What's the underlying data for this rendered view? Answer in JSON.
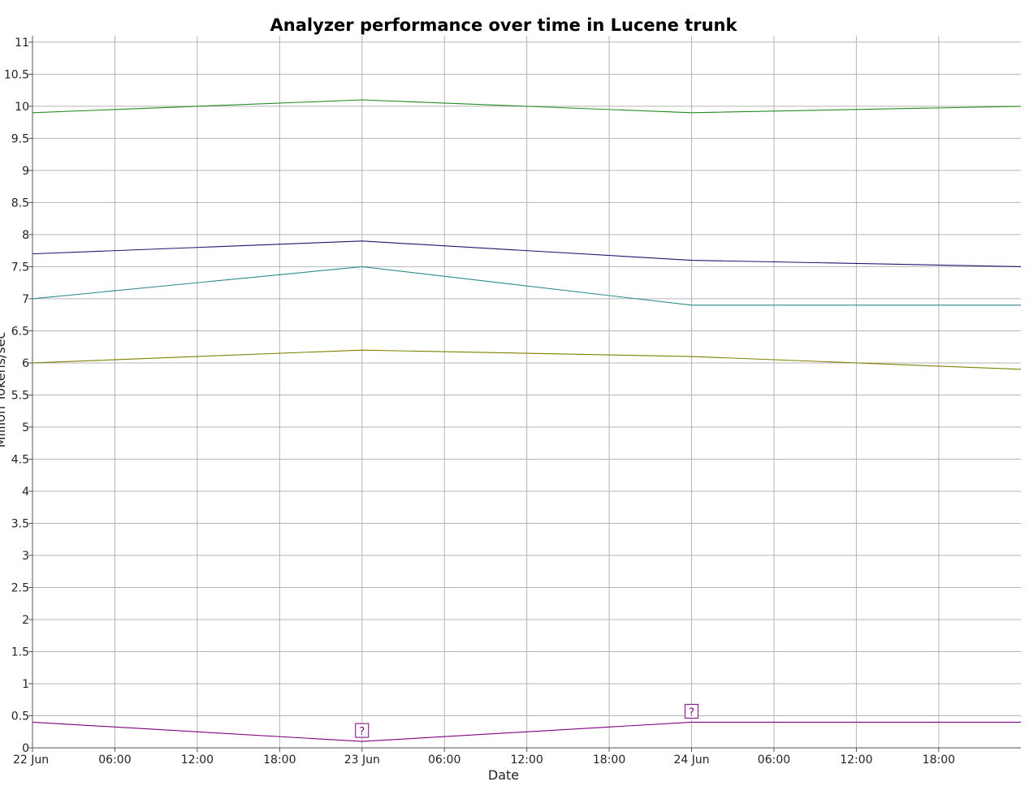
{
  "chart_data": {
    "type": "line",
    "title": "Analyzer performance over time in Lucene trunk",
    "xlabel": "Date",
    "ylabel": "Million Tokens/sec",
    "x_type": "datetime",
    "xlim": [
      "2011-06-22 00:00",
      "2011-06-24 23:59"
    ],
    "ylim": [
      0,
      11.1
    ],
    "x_ticks": [
      "2011-06-22 00:00",
      "2011-06-22 06:00",
      "2011-06-22 12:00",
      "2011-06-22 18:00",
      "2011-06-23 00:00",
      "2011-06-23 06:00",
      "2011-06-23 12:00",
      "2011-06-23 18:00",
      "2011-06-24 00:00",
      "2011-06-24 06:00",
      "2011-06-24 12:00",
      "2011-06-24 18:00"
    ],
    "x_tick_labels": [
      "22 Jun",
      "06:00",
      "12:00",
      "18:00",
      "23 Jun",
      "06:00",
      "12:00",
      "18:00",
      "24 Jun",
      "06:00",
      "12:00",
      "18:00"
    ],
    "y_ticks": [
      0,
      0.5,
      1,
      1.5,
      2,
      2.5,
      3,
      3.5,
      4,
      4.5,
      5,
      5.5,
      6,
      6.5,
      7,
      7.5,
      8,
      8.5,
      9,
      9.5,
      10,
      10.5,
      11
    ],
    "y_tick_labels": [
      "0",
      "0.5",
      "1",
      "1.5",
      "2",
      "2.5",
      "3",
      "3.5",
      "4",
      "4.5",
      "5",
      "5.5",
      "6",
      "6.5",
      "7",
      "7.5",
      "8",
      "8.5",
      "9",
      "9.5",
      "10",
      "10.5",
      "11"
    ],
    "grid": true,
    "legend": "none",
    "x": [
      "2011-06-22 00:00",
      "2011-06-23 00:00",
      "2011-06-24 00:00",
      "2011-06-24 23:59"
    ],
    "series": [
      {
        "color": "#228b22",
        "values": [
          9.9,
          10.1,
          9.9,
          10.0
        ]
      },
      {
        "color": "#191970",
        "values": [
          7.7,
          7.9,
          7.6,
          7.5
        ]
      },
      {
        "color": "#2e8b8b",
        "values": [
          7.0,
          7.5,
          6.9,
          6.9
        ]
      },
      {
        "color": "#808000",
        "values": [
          6.0,
          6.2,
          6.1,
          5.9
        ]
      },
      {
        "color": "#800080",
        "values": [
          0.4,
          0.1,
          0.4,
          0.4
        ]
      }
    ],
    "annotations": [
      {
        "text": "?",
        "x": "2011-06-23 00:00",
        "y": 0.1,
        "color": "#800080"
      },
      {
        "text": "?",
        "x": "2011-06-24 00:00",
        "y": 0.4,
        "color": "#800080"
      }
    ]
  }
}
